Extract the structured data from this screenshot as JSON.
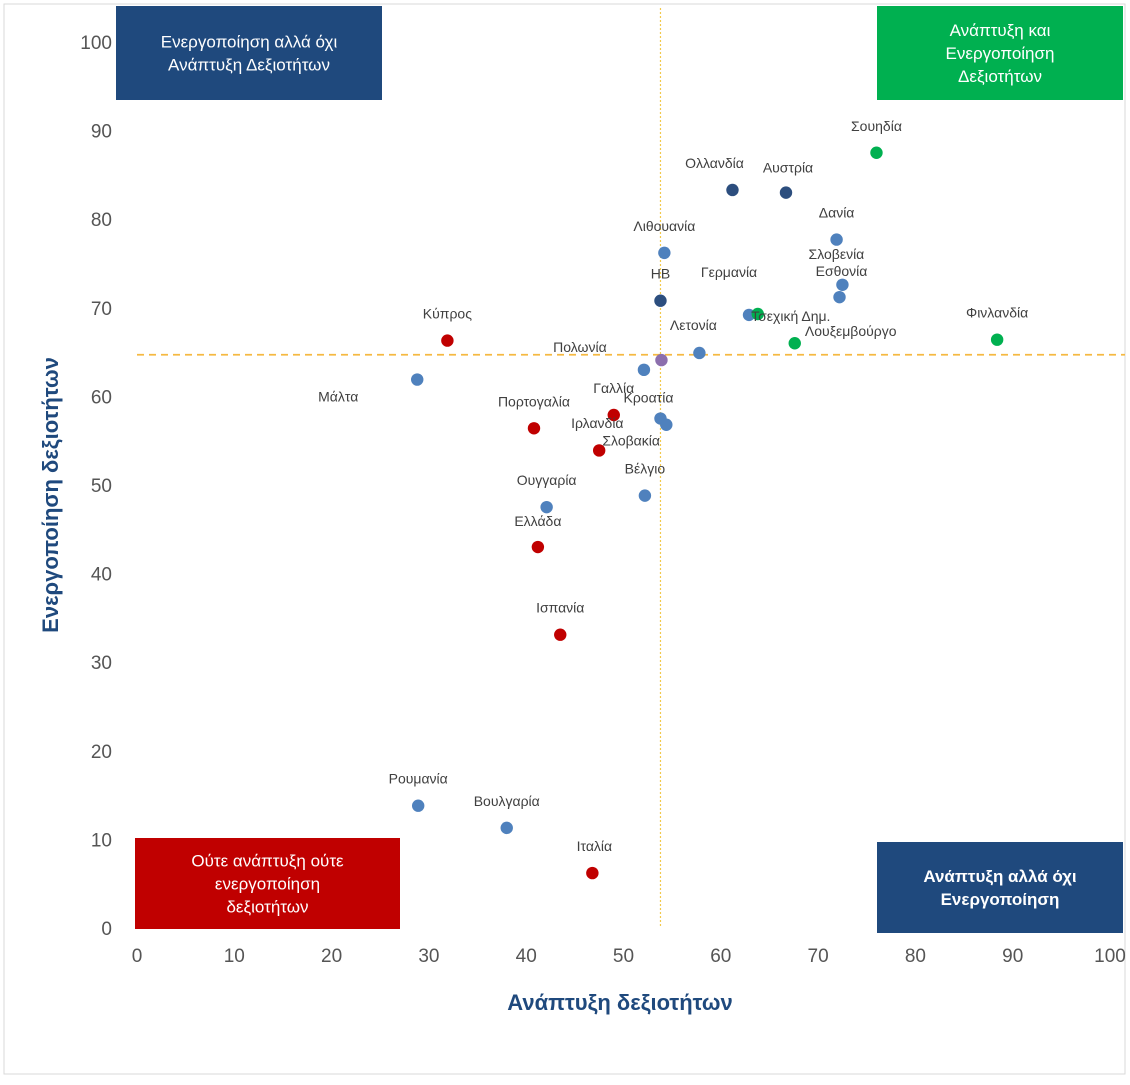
{
  "chart_data": {
    "type": "scatter",
    "xlabel": "Ανάπτυξη δεξιοτήτων",
    "ylabel": "Ενεργοποίηση δεξιοτήτων",
    "xlim": [
      0,
      100
    ],
    "ylim": [
      0,
      100
    ],
    "x_ticks": [
      "0",
      "10",
      "20",
      "30",
      "40",
      "50",
      "60",
      "70",
      "80",
      "90",
      "100"
    ],
    "y_ticks": [
      "0",
      "10",
      "20",
      "30",
      "40",
      "50",
      "60",
      "70",
      "80",
      "90",
      "100"
    ],
    "grid": false,
    "reference_lines": {
      "x": 53.8,
      "y": 64.7
    },
    "colors": {
      "axis_title": "#1f497d",
      "ref_x": "#f2c94c",
      "ref_y": "#f5b942",
      "frame": "#d9d9d9"
    },
    "quadrants": [
      {
        "text": [
          "Ενεργοποίηση αλλά όχι",
          "Ανάπτυξη Δεξιοτήτων"
        ],
        "position": "top-left",
        "color": "#1f497d",
        "bold": false
      },
      {
        "text": [
          "Ανάπτυξη και",
          "Ενεργοποίηση",
          "Δεξιοτήτων"
        ],
        "position": "top-right",
        "color": "#00b050",
        "bold": false
      },
      {
        "text": [
          "Ούτε ανάπτυξη ούτε",
          "ενεργοποίηση",
          "δεξιοτήτων"
        ],
        "position": "bottom-left",
        "color": "#c00000",
        "bold": false
      },
      {
        "text": [
          "Ανάπτυξη αλλά όχι",
          "Ενεργοποίηση"
        ],
        "position": "bottom-right",
        "color": "#1f497d",
        "bold": true
      }
    ],
    "points": [
      {
        "name": "Σουηδία",
        "x": 76.0,
        "y": 87.5,
        "color": "#00b050"
      },
      {
        "name": "Ολλανδία",
        "x": 61.2,
        "y": 83.3,
        "color": "#2c4e7e"
      },
      {
        "name": "Αυστρία",
        "x": 66.7,
        "y": 83.0,
        "color": "#2c4e7e"
      },
      {
        "name": "Δανία",
        "x": 71.9,
        "y": 77.7,
        "color": "#4f81bd"
      },
      {
        "name": "Λιθουανία",
        "x": 54.2,
        "y": 76.2,
        "color": "#4f81bd"
      },
      {
        "name": "Σλοβενία",
        "x": 72.5,
        "y": 72.6,
        "color": "#4f81bd"
      },
      {
        "name": "Εσθονία",
        "x": 72.2,
        "y": 71.2,
        "color": "#4f81bd"
      },
      {
        "name": "ΗΒ",
        "x": 53.8,
        "y": 70.8,
        "color": "#2c4e7e"
      },
      {
        "name": "Γερμανία",
        "x": 62.9,
        "y": 69.2,
        "color": "#4f81bd"
      },
      {
        "name": "Τσεχική Δημ.",
        "x": 63.8,
        "y": 69.3,
        "color": "#00b050"
      },
      {
        "name": "Φινλανδία",
        "x": 88.4,
        "y": 66.4,
        "color": "#00b050"
      },
      {
        "name": "Κύπρος",
        "x": 31.9,
        "y": 66.3,
        "color": "#c00000"
      },
      {
        "name": "Λουξεμβούργο",
        "x": 67.6,
        "y": 66.0,
        "color": "#00b050"
      },
      {
        "name": "Λετονία",
        "x": 57.8,
        "y": 64.9,
        "color": "#4f81bd"
      },
      {
        "name": "Πολωνία",
        "x": 52.1,
        "y": 63.0,
        "color": "#4f81bd"
      },
      {
        "name": "",
        "x": 53.9,
        "y": 64.1,
        "color": "#8c6fad"
      },
      {
        "name": "Μάλτα",
        "x": 28.8,
        "y": 61.9,
        "color": "#4f81bd"
      },
      {
        "name": "Γαλλία",
        "x": 49.0,
        "y": 57.9,
        "color": "#c00000"
      },
      {
        "name": "Κροατία",
        "x": 53.8,
        "y": 57.5,
        "color": "#4f81bd"
      },
      {
        "name": "Πορτογαλία",
        "x": 40.8,
        "y": 56.4,
        "color": "#c00000"
      },
      {
        "name": "Ιρλανδία",
        "x": 54.4,
        "y": 56.8,
        "color": "#4f81bd"
      },
      {
        "name": "Σλοβακία",
        "x": 47.5,
        "y": 53.9,
        "color": "#c00000"
      },
      {
        "name": "Βέλγιο",
        "x": 52.2,
        "y": 48.8,
        "color": "#4f81bd"
      },
      {
        "name": "Ουγγαρία",
        "x": 42.1,
        "y": 47.5,
        "color": "#4f81bd"
      },
      {
        "name": "Ελλάδα",
        "x": 41.2,
        "y": 43.0,
        "color": "#c00000"
      },
      {
        "name": "Ισπανία",
        "x": 43.5,
        "y": 33.1,
        "color": "#c00000"
      },
      {
        "name": "Ρουμανία",
        "x": 28.9,
        "y": 13.8,
        "color": "#4f81bd"
      },
      {
        "name": "Βουλγαρία",
        "x": 38.0,
        "y": 11.3,
        "color": "#4f81bd"
      },
      {
        "name": "Ιταλία",
        "x": 46.8,
        "y": 6.2,
        "color": "#c00000"
      }
    ]
  }
}
